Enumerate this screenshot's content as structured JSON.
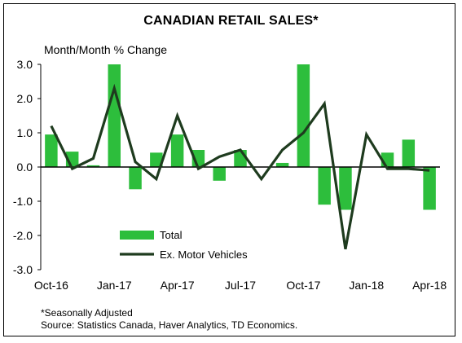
{
  "chart_data": {
    "type": "bar",
    "title": "CANADIAN RETAIL SALES*",
    "ylabel": "Month/Month % Change",
    "ylim": [
      -3.0,
      3.0
    ],
    "yticks": [
      3.0,
      2.0,
      1.0,
      0.0,
      -1.0,
      -2.0,
      -3.0
    ],
    "ytick_labels": [
      "3.0",
      "2.0",
      "1.0",
      "0.0",
      "-1.0",
      "-2.0",
      "-3.0"
    ],
    "categories": [
      "Oct-16",
      "Nov-16",
      "Dec-16",
      "Jan-17",
      "Feb-17",
      "Mar-17",
      "Apr-17",
      "May-17",
      "Jun-17",
      "Jul-17",
      "Aug-17",
      "Sep-17",
      "Oct-17",
      "Nov-17",
      "Dec-17",
      "Jan-18",
      "Feb-18",
      "Mar-18",
      "Apr-18"
    ],
    "xtick_labels": [
      "Oct-16",
      "Jan-17",
      "Apr-17",
      "Jul-17",
      "Oct-17",
      "Jan-18",
      "Apr-18"
    ],
    "xtick_indices": [
      0,
      3,
      6,
      9,
      12,
      15,
      18
    ],
    "series": [
      {
        "name": "Total",
        "type": "bar",
        "color": "#2DBE3C",
        "values": [
          0.95,
          0.45,
          0.05,
          3.0,
          -0.65,
          0.42,
          0.95,
          0.5,
          -0.4,
          0.5,
          0.0,
          0.12,
          3.0,
          -1.1,
          -1.25,
          0.0,
          0.42,
          0.8,
          -1.25
        ]
      },
      {
        "name": "Ex. Motor Vehicles",
        "type": "line",
        "color": "#1E3B1E",
        "values": [
          1.2,
          -0.05,
          0.25,
          2.3,
          0.15,
          -0.35,
          1.5,
          -0.05,
          0.3,
          0.5,
          -0.35,
          0.5,
          1.0,
          1.85,
          -2.4,
          0.95,
          -0.05,
          -0.05,
          -0.1
        ]
      }
    ],
    "legend_position": "lower-left",
    "grid": false
  },
  "footnote": "*Seasonally Adjusted",
  "source": "Source: Statistics Canada, Haver Analytics, TD Economics."
}
